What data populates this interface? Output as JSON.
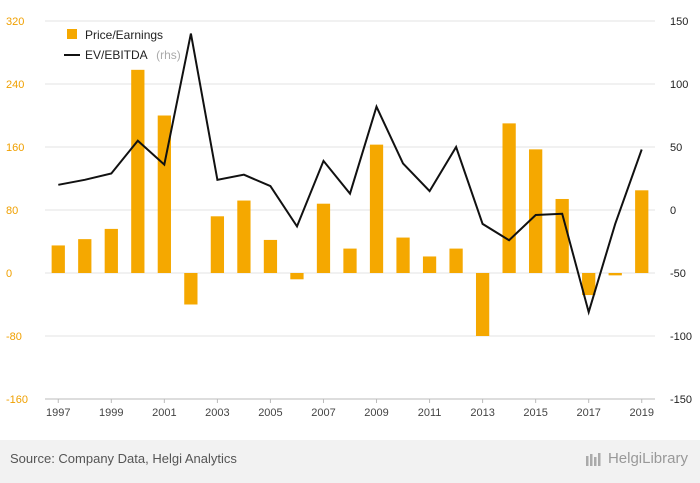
{
  "chart_data": {
    "type": "bar+line",
    "categories": [
      "1997",
      "1998",
      "1999",
      "2000",
      "2001",
      "2002",
      "2003",
      "2004",
      "2005",
      "2006",
      "2007",
      "2008",
      "2009",
      "2010",
      "2011",
      "2012",
      "2013",
      "2014",
      "2015",
      "2016",
      "2017",
      "2018",
      "2019"
    ],
    "x_tick_labels": [
      "1997",
      "1999",
      "2001",
      "2003",
      "2005",
      "2007",
      "2009",
      "2011",
      "2013",
      "2015",
      "2017",
      "2019"
    ],
    "series": [
      {
        "name": "Price/Earnings",
        "kind": "bar",
        "axis": "left",
        "color": "#f5a800",
        "values": [
          35,
          43,
          56,
          258,
          200,
          -40,
          72,
          92,
          42,
          -8,
          88,
          31,
          163,
          45,
          21,
          31,
          -80,
          190,
          157,
          94,
          -28,
          -3,
          105
        ]
      },
      {
        "name": "EV/EBITDA",
        "legend_suffix": "(rhs)",
        "kind": "line",
        "axis": "right",
        "color": "#111111",
        "values": [
          20,
          24,
          29,
          55,
          36,
          140,
          24,
          28,
          19,
          -13,
          39,
          13,
          82,
          37,
          15,
          50,
          -11,
          -24,
          -4,
          -3,
          -81,
          -11,
          48
        ]
      }
    ],
    "y_left": {
      "min": -160,
      "max": 320,
      "ticks": [
        320,
        240,
        160,
        80,
        0,
        -80,
        -160
      ]
    },
    "y_right": {
      "min": -150,
      "max": 150,
      "ticks": [
        150,
        100,
        50,
        0,
        -50,
        -100,
        -150
      ]
    },
    "grid": true,
    "legend_position": "top-left"
  },
  "footer": {
    "source": "Source: Company Data, Helgi Analytics",
    "brand": "HelgiLibrary"
  }
}
